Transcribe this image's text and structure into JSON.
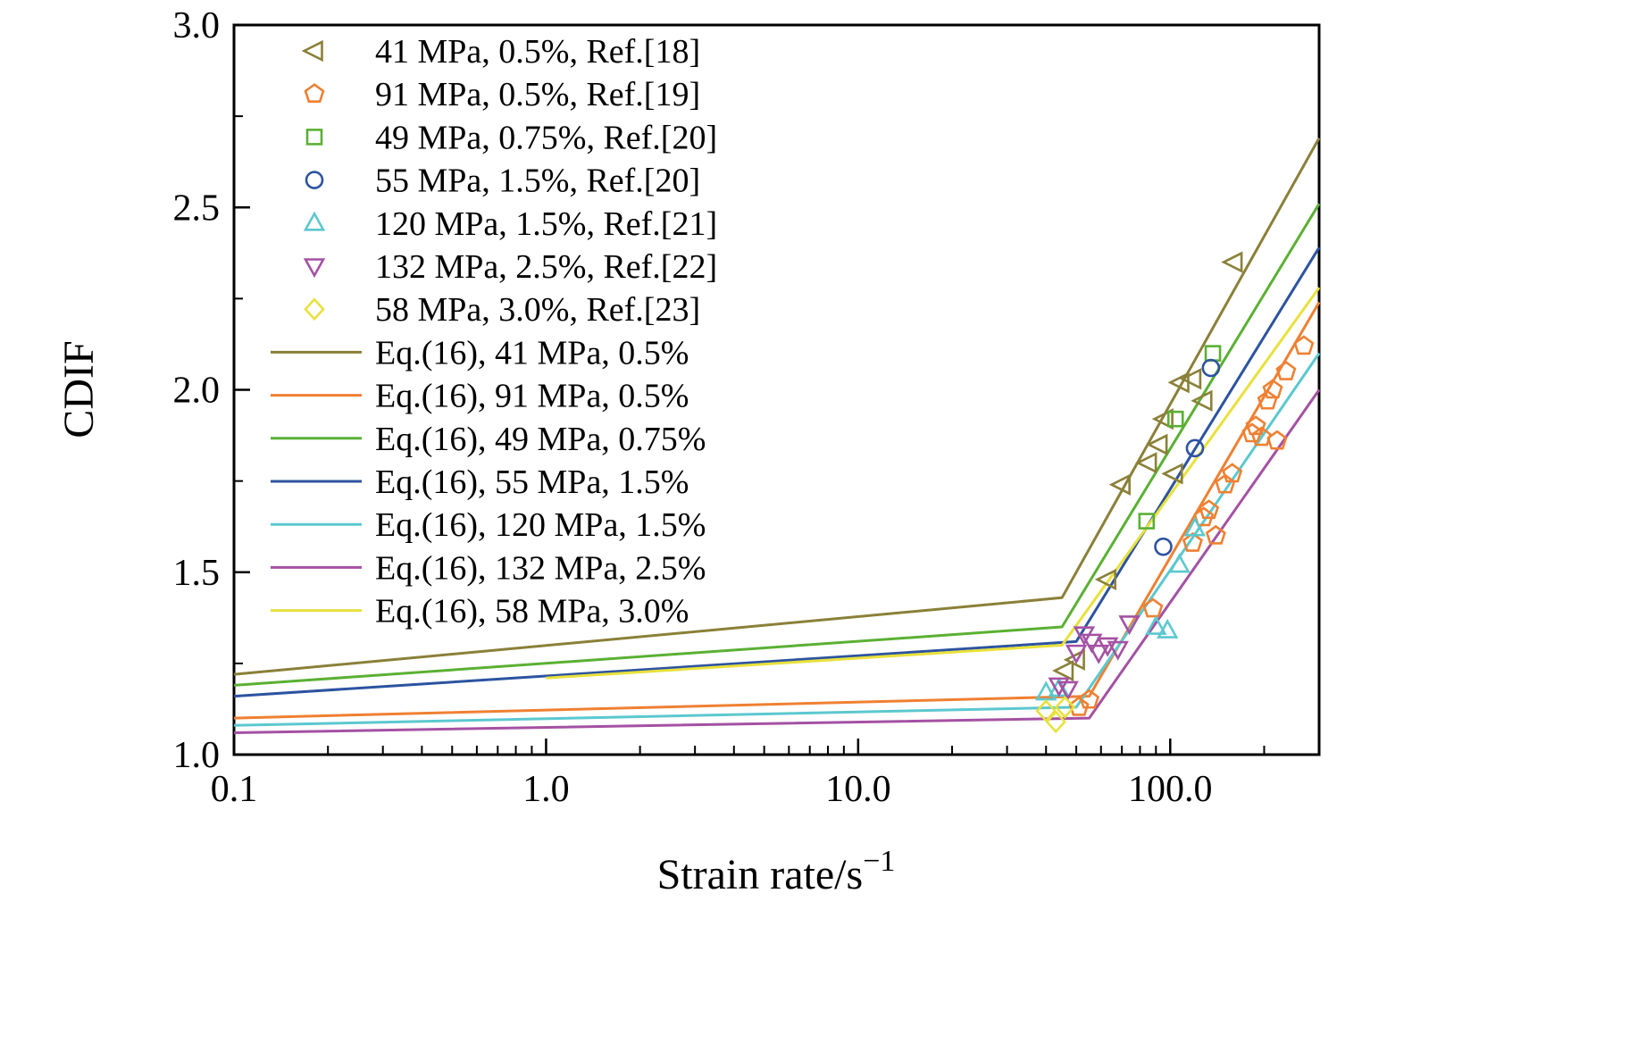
{
  "chart_data": {
    "type": "line+scatter",
    "title": "",
    "xlabel_base": "Strain rate/s",
    "xlabel_sup": "−1",
    "ylabel": "CDIF",
    "xscale": "log",
    "xlim": [
      0.1,
      300
    ],
    "ylim": [
      1.0,
      3.0
    ],
    "grid": false,
    "legend_position": "top-left",
    "x_ticks": [
      0.1,
      1.0,
      10.0,
      100.0
    ],
    "x_tick_labels": [
      "0.1",
      "1.0",
      "10.0",
      "100.0"
    ],
    "y_ticks": [
      1.0,
      1.5,
      2.0,
      2.5,
      3.0
    ],
    "y_tick_labels": [
      "1.0",
      "1.5",
      "2.0",
      "2.5",
      "3.0"
    ],
    "scatter_series": [
      {
        "name": "41 MPa, 0.5%, Ref.[18]",
        "marker": "triangle-left",
        "color": "#8a8038",
        "points": [
          [
            46,
            1.23
          ],
          [
            50,
            1.26
          ],
          [
            63,
            1.48
          ],
          [
            70,
            1.74
          ],
          [
            85,
            1.8
          ],
          [
            92,
            1.85
          ],
          [
            96,
            1.92
          ],
          [
            103,
            1.77
          ],
          [
            108,
            2.02
          ],
          [
            118,
            2.03
          ],
          [
            128,
            1.97
          ],
          [
            160,
            2.35
          ]
        ]
      },
      {
        "name": "91 MPa, 0.5%, Ref.[19]",
        "marker": "pentagon",
        "color": "#ef8032",
        "points": [
          [
            51,
            1.13
          ],
          [
            55,
            1.15
          ],
          [
            88,
            1.4
          ],
          [
            118,
            1.58
          ],
          [
            128,
            1.65
          ],
          [
            133,
            1.67
          ],
          [
            140,
            1.6
          ],
          [
            150,
            1.74
          ],
          [
            158,
            1.77
          ],
          [
            183,
            1.88
          ],
          [
            188,
            1.9
          ],
          [
            196,
            1.87
          ],
          [
            205,
            1.97
          ],
          [
            213,
            2.0
          ],
          [
            220,
            1.86
          ],
          [
            235,
            2.05
          ],
          [
            268,
            2.12
          ]
        ]
      },
      {
        "name": "49 MPa, 0.75%, Ref.[20]",
        "marker": "square",
        "color": "#5ab033",
        "points": [
          [
            84,
            1.64
          ],
          [
            104,
            1.92
          ],
          [
            137,
            2.1
          ]
        ]
      },
      {
        "name": "55 MPa, 1.5%, Ref.[20]",
        "marker": "circle",
        "color": "#2c53a0",
        "points": [
          [
            95,
            1.57
          ],
          [
            120,
            1.84
          ],
          [
            135,
            2.06
          ]
        ]
      },
      {
        "name": "120 MPa, 1.5%, Ref.[21]",
        "marker": "triangle-up",
        "color": "#5bc8cf",
        "points": [
          [
            40,
            1.17
          ],
          [
            44,
            1.18
          ],
          [
            90,
            1.35
          ],
          [
            98,
            1.34
          ],
          [
            107,
            1.52
          ],
          [
            120,
            1.62
          ]
        ]
      },
      {
        "name": "132 MPa, 2.5%, Ref.[22]",
        "marker": "triangle-down",
        "color": "#a451a3",
        "points": [
          [
            44,
            1.19
          ],
          [
            47,
            1.18
          ],
          [
            50,
            1.28
          ],
          [
            53,
            1.33
          ],
          [
            56,
            1.31
          ],
          [
            59,
            1.28
          ],
          [
            63,
            1.3
          ],
          [
            68,
            1.29
          ],
          [
            74,
            1.36
          ]
        ]
      },
      {
        "name": "58 MPa, 3.0%, Ref.[23]",
        "marker": "diamond",
        "color": "#e8e13c",
        "points": [
          [
            40,
            1.12
          ],
          [
            43,
            1.09
          ],
          [
            46,
            1.13
          ]
        ]
      }
    ],
    "line_series": [
      {
        "name": "Eq.(16), 41 MPa, 0.5%",
        "color": "#8a8038",
        "points": [
          [
            0.1,
            1.22
          ],
          [
            45,
            1.43
          ],
          [
            300,
            2.69
          ]
        ]
      },
      {
        "name": "Eq.(16), 91 MPa, 0.5%",
        "color": "#ef8032",
        "points": [
          [
            0.1,
            1.1
          ],
          [
            55,
            1.16
          ],
          [
            300,
            2.24
          ]
        ]
      },
      {
        "name": "Eq.(16), 49 MPa, 0.75%",
        "color": "#5ab033",
        "points": [
          [
            0.1,
            1.19
          ],
          [
            45,
            1.35
          ],
          [
            300,
            2.51
          ]
        ]
      },
      {
        "name": "Eq.(16), 55 MPa, 1.5%",
        "color": "#2c53a0",
        "points": [
          [
            0.1,
            1.16
          ],
          [
            50,
            1.31
          ],
          [
            300,
            2.39
          ]
        ]
      },
      {
        "name": "Eq.(16), 120 MPa, 1.5%",
        "color": "#5bc8cf",
        "points": [
          [
            0.1,
            1.08
          ],
          [
            50,
            1.13
          ],
          [
            300,
            2.1
          ]
        ]
      },
      {
        "name": "Eq.(16), 132 MPa, 2.5%",
        "color": "#a451a3",
        "points": [
          [
            0.1,
            1.06
          ],
          [
            55,
            1.1
          ],
          [
            300,
            2.0
          ]
        ]
      },
      {
        "name": "Eq.(16), 58 MPa, 3.0%",
        "color": "#e8e13c",
        "points": [
          [
            1.0,
            1.21
          ],
          [
            45,
            1.3
          ],
          [
            300,
            2.28
          ]
        ]
      }
    ]
  }
}
